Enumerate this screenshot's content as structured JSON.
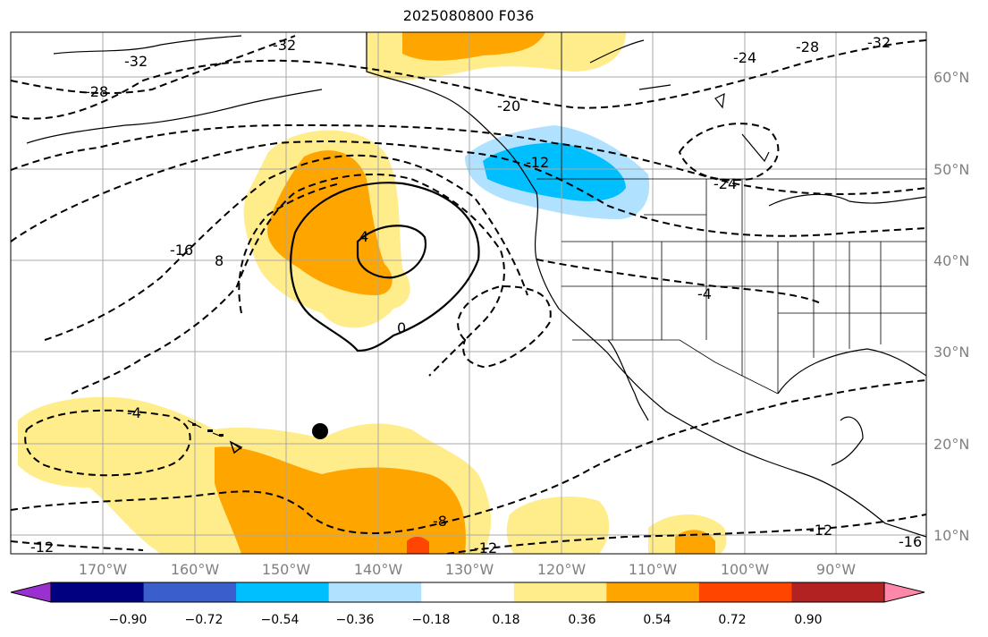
{
  "title": "2025080800 F036",
  "map": {
    "lat_ticks": [
      "60°N",
      "50°N",
      "40°N",
      "30°N",
      "20°N",
      "10°N"
    ],
    "lon_ticks": [
      "170°W",
      "160°W",
      "150°W",
      "140°W",
      "130°W",
      "120°W",
      "110°W",
      "100°W",
      "90°W"
    ],
    "contour_labels": [
      "-32",
      "-32",
      "-28",
      "-28",
      "-24",
      "-32",
      "-20",
      "-12",
      "-24",
      "-16",
      "8",
      "4",
      "0",
      "-4",
      "-4",
      "-8",
      "-12",
      "-12",
      "-12",
      "-16"
    ],
    "marker": "black-dot"
  },
  "colorbar": {
    "ticks": [
      "−0.90",
      "−0.72",
      "−0.54",
      "−0.36",
      "−0.18",
      "0.18",
      "0.36",
      "0.54",
      "0.72",
      "0.90"
    ],
    "colors": [
      "#9b30d0",
      "#000080",
      "#3a5fcd",
      "#00bfff",
      "#b0e2ff",
      "#ffffff",
      "#ffec8b",
      "#ffa500",
      "#ff4500",
      "#b22222",
      "#ff88aa"
    ]
  }
}
